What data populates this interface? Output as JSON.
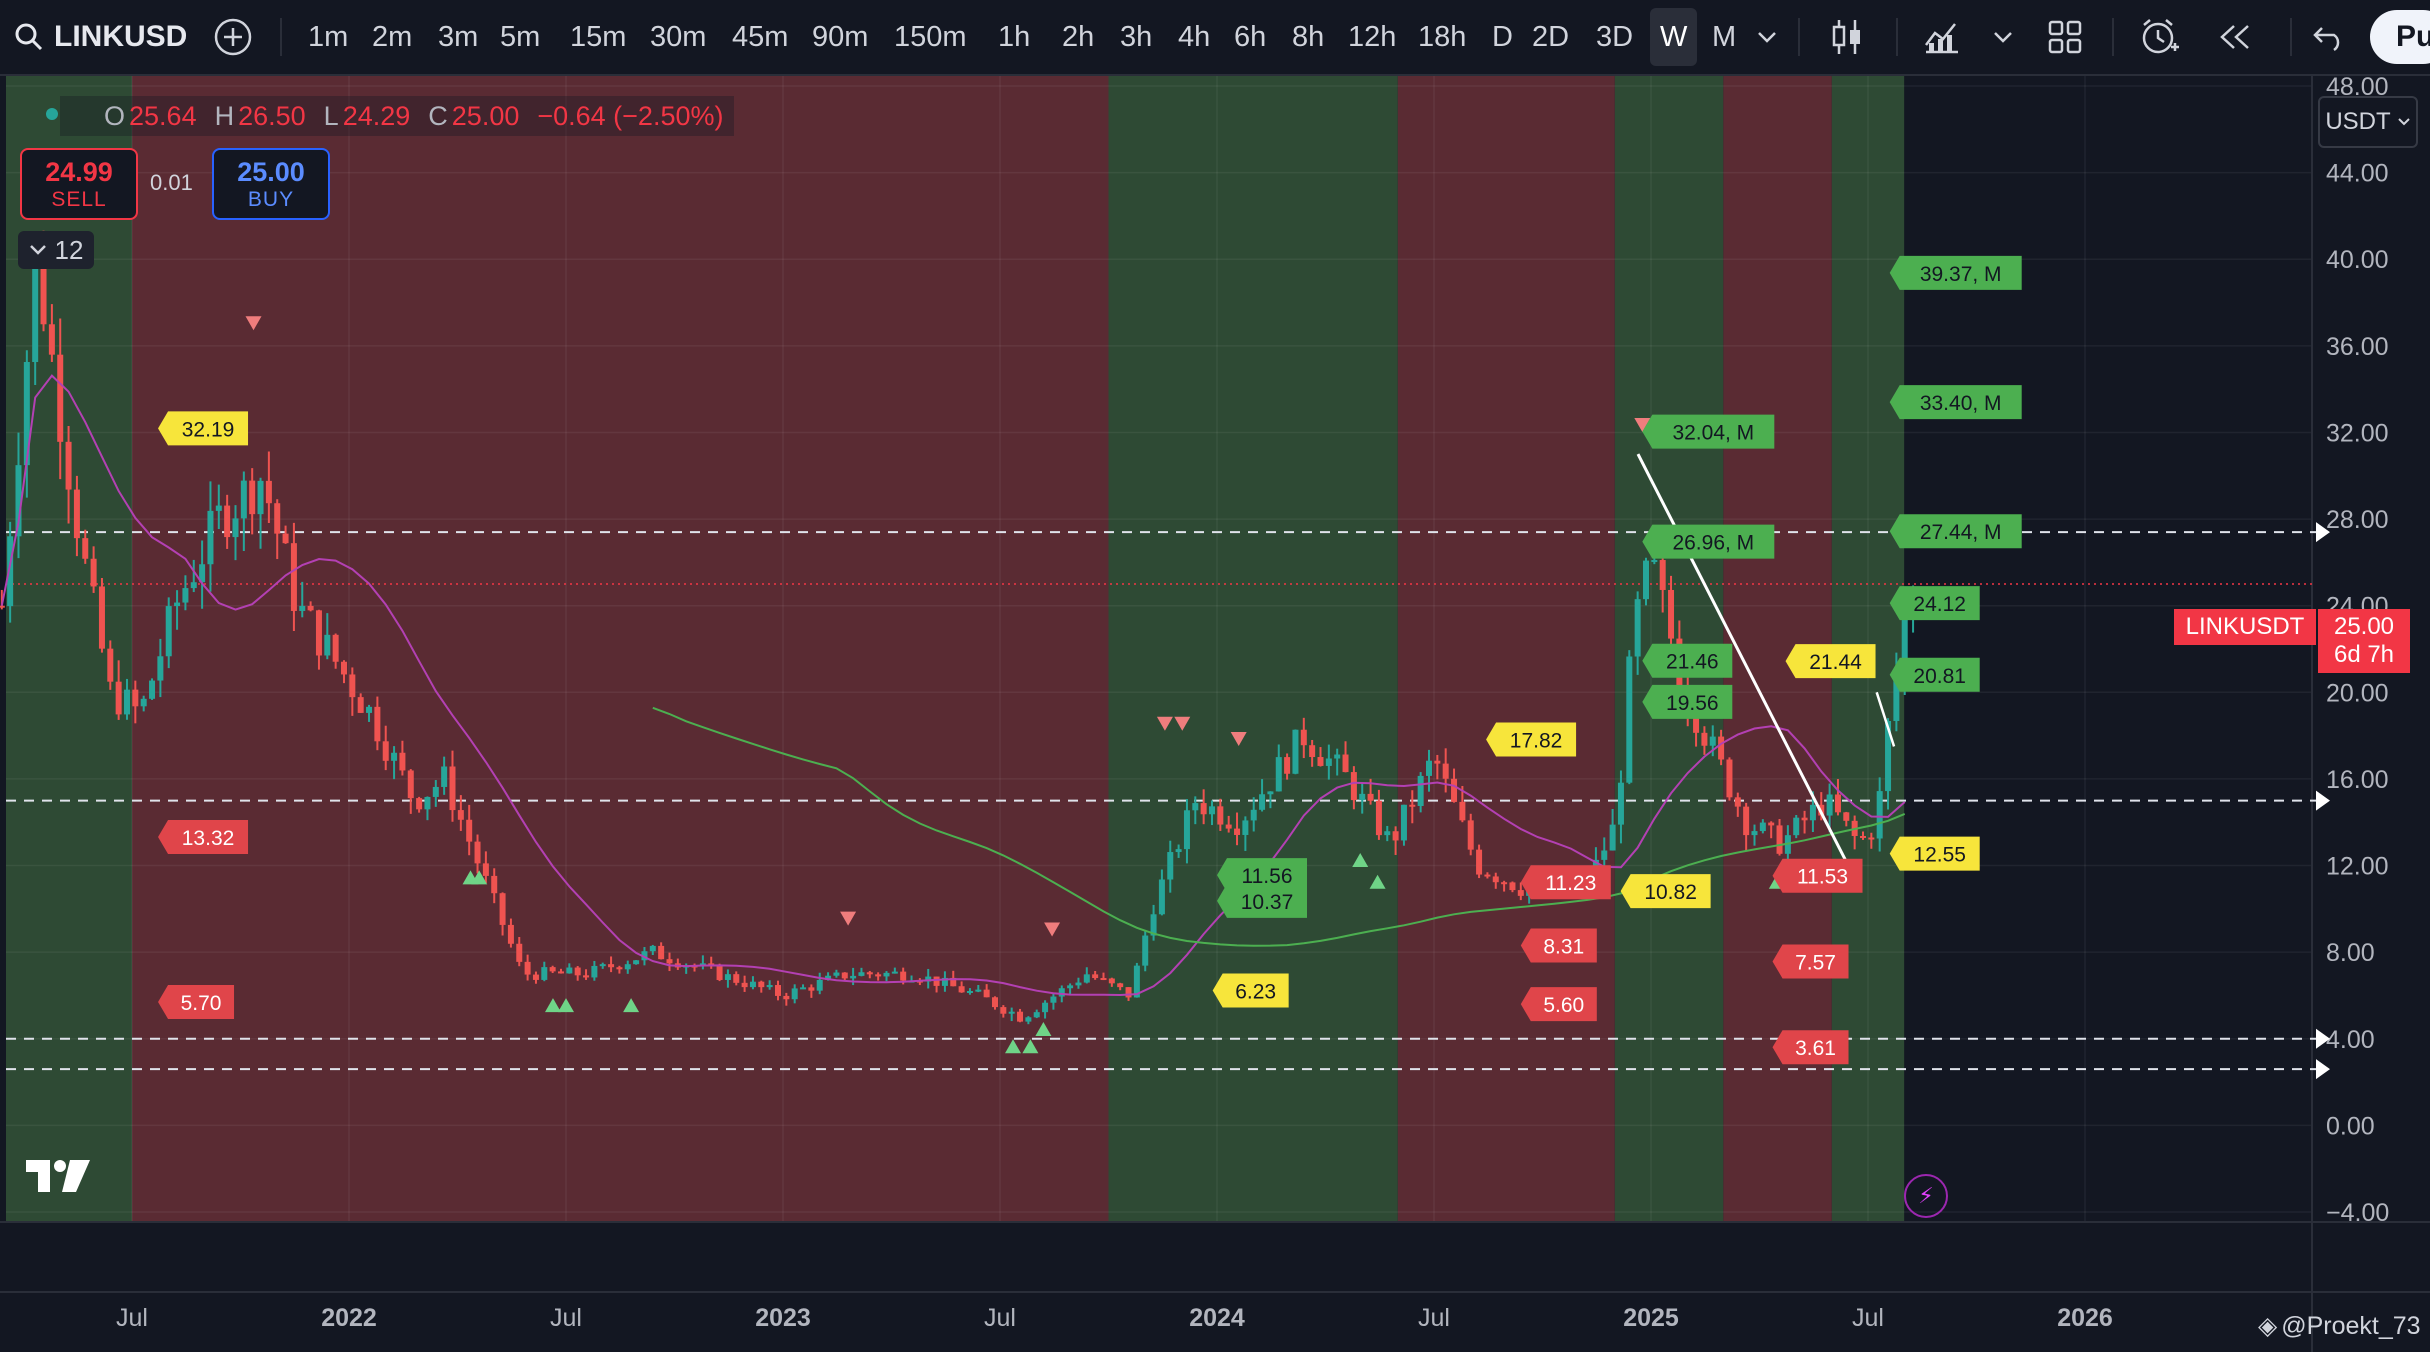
{
  "toolbar": {
    "symbol": "LINKUSD",
    "timeframes": [
      "1m",
      "2m",
      "3m",
      "5m",
      "15m",
      "30m",
      "45m",
      "90m",
      "150m",
      "1h",
      "2h",
      "3h",
      "4h",
      "6h",
      "8h",
      "12h",
      "18h",
      "D",
      "2D",
      "3D",
      "W",
      "M"
    ],
    "active_timeframe": "W",
    "publish_label": "Pu"
  },
  "ohlc": {
    "o_label": "O",
    "o": "25.64",
    "h_label": "H",
    "h": "26.50",
    "l_label": "L",
    "l": "24.29",
    "c_label": "C",
    "c": "25.00",
    "change": "−0.64 (−2.50%)"
  },
  "trade": {
    "sell_price": "24.99",
    "sell_label": "SELL",
    "spread": "0.01",
    "buy_price": "25.00",
    "buy_label": "BUY"
  },
  "indicators_count": "12",
  "currency": "USDT",
  "last_price": {
    "symbol": "LINKUSDT",
    "price": "25.00",
    "countdown": "6d 7h"
  },
  "watermark": "@Proekt_73",
  "colors": {
    "bg": "#131722",
    "up": "#26a69a",
    "down": "#ef5350",
    "green_zone": "#2e4a34",
    "red_zone": "#5a2b33",
    "ma": "#b340b3",
    "ma2": "#4caf50"
  },
  "chart_data": {
    "type": "candlestick",
    "ylim": [
      -4,
      48
    ],
    "y_ticks": [
      "48.00",
      "44.00",
      "40.00",
      "36.00",
      "32.00",
      "28.00",
      "24.00",
      "20.00",
      "16.00",
      "12.00",
      "8.00",
      "4.00",
      "0.00",
      "−4.00"
    ],
    "x_ticks": [
      "Jul",
      "2022",
      "Jul",
      "2023",
      "Jul",
      "2024",
      "Jul",
      "2025",
      "Jul",
      "2026"
    ],
    "horizontal_lines": [
      27.4,
      15.0,
      4.0,
      2.6
    ],
    "zones": [
      {
        "color": "green",
        "from": "2021-03",
        "to": "2021-07"
      },
      {
        "color": "red",
        "from": "2021-07",
        "to": "2023-10"
      },
      {
        "color": "green",
        "from": "2023-10",
        "to": "2024-06"
      },
      {
        "color": "red",
        "from": "2024-06",
        "to": "2024-12"
      },
      {
        "color": "green",
        "from": "2024-12",
        "to": "2025-03"
      },
      {
        "color": "red",
        "from": "2025-03",
        "to": "2025-06"
      },
      {
        "color": "green",
        "from": "2025-06",
        "to": "2025-08"
      }
    ],
    "labels": [
      {
        "text": "32.19",
        "value": 32.19,
        "style": "yellow"
      },
      {
        "text": "13.32",
        "value": 13.32,
        "style": "red"
      },
      {
        "text": "5.70",
        "value": 5.7,
        "style": "red"
      },
      {
        "text": "17.82",
        "value": 17.82,
        "style": "yellow"
      },
      {
        "text": "6.23",
        "value": 6.23,
        "style": "yellow"
      },
      {
        "text": "11.56",
        "value": 11.56,
        "style": "green"
      },
      {
        "text": "10.37",
        "value": 10.37,
        "style": "green"
      },
      {
        "text": "11.23",
        "value": 11.23,
        "style": "red"
      },
      {
        "text": "8.31",
        "value": 8.31,
        "style": "red"
      },
      {
        "text": "5.60",
        "value": 5.6,
        "style": "red"
      },
      {
        "text": "10.82",
        "value": 10.82,
        "style": "yellow"
      },
      {
        "text": "32.04, M",
        "value": 32.04,
        "style": "green"
      },
      {
        "text": "26.96, M",
        "value": 26.96,
        "style": "green"
      },
      {
        "text": "21.46",
        "value": 21.46,
        "style": "green"
      },
      {
        "text": "19.56",
        "value": 19.56,
        "style": "green"
      },
      {
        "text": "21.44",
        "value": 21.44,
        "style": "yellow"
      },
      {
        "text": "11.53",
        "value": 11.53,
        "style": "red"
      },
      {
        "text": "7.57",
        "value": 7.57,
        "style": "red"
      },
      {
        "text": "3.61",
        "value": 3.61,
        "style": "red"
      },
      {
        "text": "39.37, M",
        "value": 39.37,
        "style": "green"
      },
      {
        "text": "33.40, M",
        "value": 33.4,
        "style": "green"
      },
      {
        "text": "27.44, M",
        "value": 27.44,
        "style": "green"
      },
      {
        "text": "24.12",
        "value": 24.12,
        "style": "green"
      },
      {
        "text": "20.81",
        "value": 20.81,
        "style": "green"
      },
      {
        "text": "12.55",
        "value": 12.55,
        "style": "yellow"
      }
    ]
  }
}
